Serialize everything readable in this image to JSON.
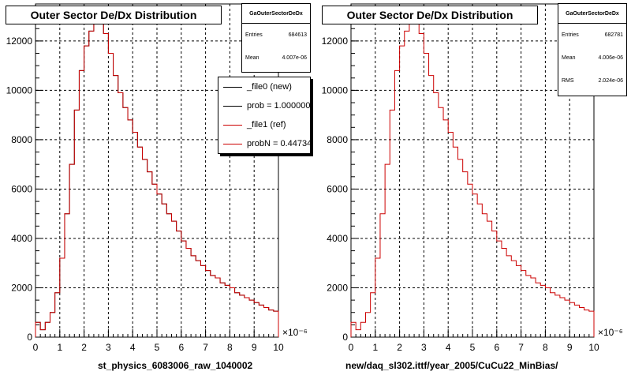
{
  "panels": [
    {
      "title": "Outer Sector De/Dx Distribution",
      "xlabel": "st_physics_6083006_raw_1040002",
      "stats": {
        "name": "GaOuterSectorDeDx",
        "rows": [
          {
            "label": "Entries",
            "value": "684613"
          },
          {
            "label": "Mean",
            "value": "4.007e-06"
          }
        ]
      },
      "legend": [
        {
          "label": "_file0 (new)",
          "color": "#000000"
        },
        {
          "label": "prob = 1.000000",
          "color": "#000000"
        },
        {
          "label": "_file1 (ref)",
          "color": "#cc0000"
        },
        {
          "label": "probN = 0.447340",
          "color": "#cc0000"
        }
      ]
    },
    {
      "title": "Outer Sector De/Dx Distribution",
      "xlabel": "new/daq_sl302.ittf/year_2005/CuCu22_MinBias/",
      "stats": {
        "name": "GaOuterSectorDeDx",
        "rows": [
          {
            "label": "Entries",
            "value": "682781"
          },
          {
            "label": "Mean",
            "value": "4.006e-06"
          },
          {
            "label": "RMS",
            "value": "2.024e-06"
          }
        ]
      },
      "legend": []
    }
  ],
  "chart_data": [
    {
      "type": "line",
      "title": "Outer Sector De/Dx Distribution",
      "xlabel": "st_physics_6083006_raw_1040002",
      "ylabel": "",
      "x_exponent_label": "×10⁻⁶",
      "xlim": [
        0,
        10
      ],
      "ylim": [
        0,
        13500
      ],
      "xticks": [
        0,
        1,
        2,
        3,
        4,
        5,
        6,
        7,
        8,
        9,
        10
      ],
      "yticks": [
        0,
        2000,
        4000,
        6000,
        8000,
        10000,
        12000
      ],
      "grid": true,
      "step": true,
      "legend_position": "top-right",
      "series": [
        {
          "name": "_file0 (new)",
          "color": "#000000",
          "x": [
            0.0,
            0.2,
            0.4,
            0.6,
            0.8,
            1.0,
            1.2,
            1.4,
            1.6,
            1.8,
            2.0,
            2.2,
            2.4,
            2.6,
            2.8,
            3.0,
            3.2,
            3.4,
            3.6,
            3.8,
            4.0,
            4.2,
            4.4,
            4.6,
            4.8,
            5.0,
            5.2,
            5.4,
            5.6,
            5.8,
            6.0,
            6.2,
            6.4,
            6.6,
            6.8,
            7.0,
            7.2,
            7.4,
            7.6,
            7.8,
            8.0,
            8.2,
            8.4,
            8.6,
            8.8,
            9.0,
            9.2,
            9.4,
            9.6,
            9.8
          ],
          "y": [
            600,
            300,
            600,
            1000,
            1800,
            3200,
            5000,
            7000,
            9200,
            10800,
            11800,
            12400,
            12800,
            12900,
            12300,
            11500,
            10600,
            9900,
            9300,
            8800,
            8300,
            7700,
            7200,
            6700,
            6200,
            5800,
            5400,
            5000,
            4700,
            4300,
            3900,
            3600,
            3300,
            3100,
            2900,
            2700,
            2500,
            2400,
            2200,
            2100,
            2000,
            1800,
            1700,
            1600,
            1500,
            1400,
            1300,
            1200,
            1100,
            1050
          ]
        },
        {
          "name": "_file1 (ref)",
          "color": "#cc0000",
          "x": [
            0.0,
            0.2,
            0.4,
            0.6,
            0.8,
            1.0,
            1.2,
            1.4,
            1.6,
            1.8,
            2.0,
            2.2,
            2.4,
            2.6,
            2.8,
            3.0,
            3.2,
            3.4,
            3.6,
            3.8,
            4.0,
            4.2,
            4.4,
            4.6,
            4.8,
            5.0,
            5.2,
            5.4,
            5.6,
            5.8,
            6.0,
            6.2,
            6.4,
            6.6,
            6.8,
            7.0,
            7.2,
            7.4,
            7.6,
            7.8,
            8.0,
            8.2,
            8.4,
            8.6,
            8.8,
            9.0,
            9.2,
            9.4,
            9.6,
            9.8
          ],
          "y": [
            600,
            300,
            600,
            1000,
            1800,
            3200,
            5000,
            7000,
            9200,
            10800,
            11800,
            12400,
            12800,
            12900,
            12300,
            11500,
            10600,
            9900,
            9300,
            8800,
            8300,
            7700,
            7200,
            6700,
            6200,
            5800,
            5400,
            5000,
            4700,
            4300,
            3900,
            3600,
            3300,
            3100,
            2900,
            2700,
            2500,
            2400,
            2200,
            2100,
            2000,
            1800,
            1700,
            1600,
            1500,
            1400,
            1300,
            1200,
            1100,
            1050
          ]
        }
      ]
    },
    {
      "type": "line",
      "title": "Outer Sector De/Dx Distribution",
      "xlabel": "new/daq_sl302.ittf/year_2005/CuCu22_MinBias/",
      "ylabel": "",
      "x_exponent_label": "×10⁻⁶",
      "xlim": [
        0,
        10
      ],
      "ylim": [
        0,
        13500
      ],
      "xticks": [
        0,
        1,
        2,
        3,
        4,
        5,
        6,
        7,
        8,
        9,
        10
      ],
      "yticks": [
        0,
        2000,
        4000,
        6000,
        8000,
        10000,
        12000
      ],
      "grid": true,
      "step": true,
      "series": [
        {
          "name": "",
          "color": "#cc0000",
          "x": [
            0.0,
            0.2,
            0.4,
            0.6,
            0.8,
            1.0,
            1.2,
            1.4,
            1.6,
            1.8,
            2.0,
            2.2,
            2.4,
            2.6,
            2.8,
            3.0,
            3.2,
            3.4,
            3.6,
            3.8,
            4.0,
            4.2,
            4.4,
            4.6,
            4.8,
            5.0,
            5.2,
            5.4,
            5.6,
            5.8,
            6.0,
            6.2,
            6.4,
            6.6,
            6.8,
            7.0,
            7.2,
            7.4,
            7.6,
            7.8,
            8.0,
            8.2,
            8.4,
            8.6,
            8.8,
            9.0,
            9.2,
            9.4,
            9.6,
            9.8
          ],
          "y": [
            600,
            300,
            600,
            1000,
            1800,
            3200,
            5000,
            7000,
            9200,
            10800,
            11800,
            12400,
            12800,
            12900,
            12300,
            11500,
            10600,
            9900,
            9300,
            8800,
            8300,
            7700,
            7200,
            6700,
            6200,
            5800,
            5400,
            5000,
            4700,
            4300,
            3900,
            3600,
            3300,
            3100,
            2900,
            2700,
            2500,
            2400,
            2200,
            2100,
            2000,
            1800,
            1700,
            1600,
            1500,
            1400,
            1300,
            1200,
            1100,
            1050
          ]
        }
      ]
    }
  ]
}
